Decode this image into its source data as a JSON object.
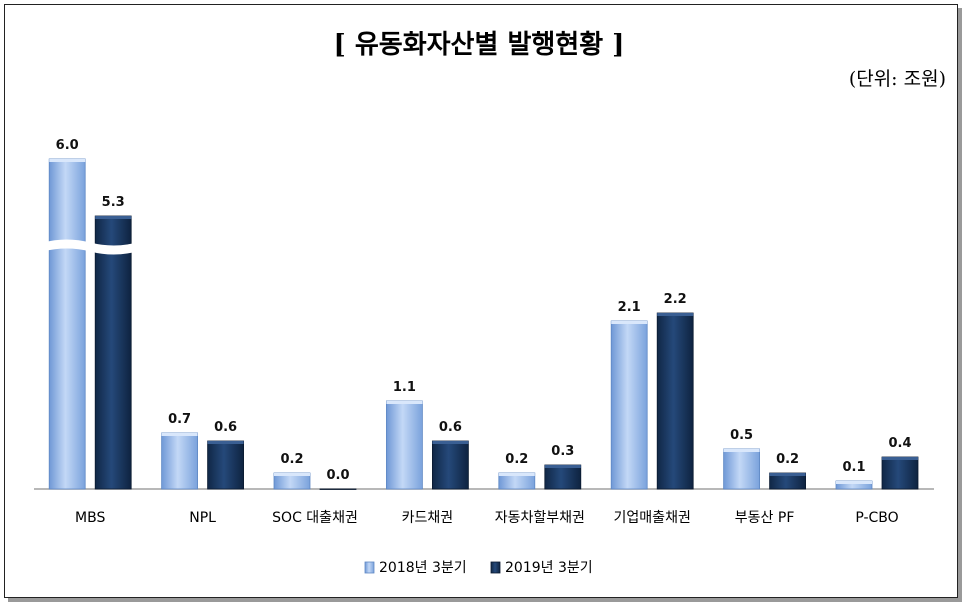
{
  "chart_data": {
    "type": "bar",
    "title": "[ 유동화자산별 발행현황 ]",
    "unit": "(단위: 조원)",
    "categories": [
      "MBS",
      "NPL",
      "SOC 대출채권",
      "카드채권",
      "자동차할부채권",
      "기업매출채권",
      "부동산 PF",
      "P-CBO"
    ],
    "series": [
      {
        "name": "2018년 3분기",
        "values": [
          6.0,
          0.7,
          0.2,
          1.1,
          0.2,
          2.1,
          0.5,
          0.1
        ],
        "color": "#8fb4e6"
      },
      {
        "name": "2019년 3분기",
        "values": [
          5.3,
          0.6,
          0.0,
          0.6,
          0.3,
          2.2,
          0.2,
          0.4
        ],
        "color": "#17355e"
      }
    ],
    "axis_break": "MBS bars are truncated with a break mark",
    "grid": false,
    "legend_position": "bottom"
  }
}
